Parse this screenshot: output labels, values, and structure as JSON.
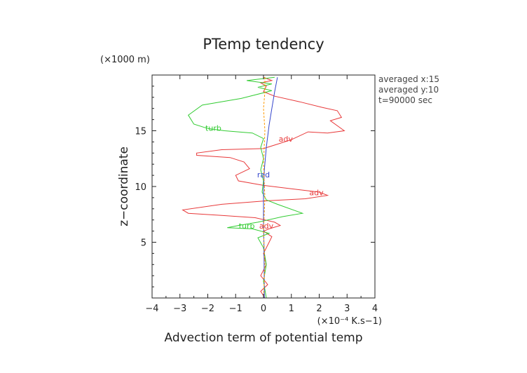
{
  "chart_data": {
    "type": "line",
    "title": "PTemp tendency",
    "xlabel": "Advection term of potential temp",
    "ylabel": "z−coordinate",
    "x_unit": "(×10⁻⁴ K.s−1)",
    "y_unit": "(×1000 m)",
    "xlim": [
      -4,
      4
    ],
    "ylim": [
      0,
      20
    ],
    "x_ticks": [
      -4,
      -3,
      -2,
      -1,
      0,
      1,
      2,
      3,
      4
    ],
    "x_tick_labels": [
      "−4",
      "−3",
      "−2",
      "−1",
      "0",
      "1",
      "2",
      "3",
      "4"
    ],
    "y_ticks": [
      5,
      10,
      15
    ],
    "y_tick_labels": [
      "5",
      "10",
      "15"
    ],
    "grid": false,
    "annotations": [
      "averaged  x:15",
      "averaged  y:10",
      "t=90000 sec"
    ],
    "series": [
      {
        "name": "adv",
        "color": "#e8393a",
        "labels": [
          {
            "text": "adv",
            "x": 0.8,
            "y": 14.2
          },
          {
            "text": "adv",
            "x": 1.9,
            "y": 9.4
          },
          {
            "text": "adv",
            "x": 0.1,
            "y": 6.4
          }
        ],
        "points": [
          [
            0.0,
            19.8
          ],
          [
            0.3,
            19.5
          ],
          [
            -0.1,
            19.3
          ],
          [
            0.1,
            19.0
          ],
          [
            0.0,
            18.5
          ],
          [
            0.4,
            18.1
          ],
          [
            1.3,
            17.6
          ],
          [
            2.1,
            17.1
          ],
          [
            2.65,
            16.8
          ],
          [
            2.8,
            16.2
          ],
          [
            2.4,
            15.9
          ],
          [
            2.9,
            15.0
          ],
          [
            2.3,
            14.8
          ],
          [
            1.6,
            14.9
          ],
          [
            1.0,
            14.2
          ],
          [
            0.5,
            13.8
          ],
          [
            0.0,
            13.4
          ],
          [
            -1.5,
            13.3
          ],
          [
            -2.4,
            13.0
          ],
          [
            -2.4,
            12.8
          ],
          [
            -1.2,
            12.6
          ],
          [
            -0.7,
            12.2
          ],
          [
            -0.5,
            11.6
          ],
          [
            -1.0,
            11.0
          ],
          [
            -0.9,
            10.5
          ],
          [
            0.0,
            10.1
          ],
          [
            1.0,
            9.8
          ],
          [
            2.0,
            9.5
          ],
          [
            2.3,
            9.2
          ],
          [
            1.5,
            8.9
          ],
          [
            0.0,
            8.7
          ],
          [
            -1.5,
            8.4
          ],
          [
            -2.9,
            7.9
          ],
          [
            -2.7,
            7.6
          ],
          [
            -1.5,
            7.4
          ],
          [
            -0.3,
            7.2
          ],
          [
            0.4,
            6.8
          ],
          [
            0.6,
            6.5
          ],
          [
            0.2,
            6.2
          ],
          [
            0.0,
            6.0
          ],
          [
            0.3,
            5.5
          ],
          [
            0.2,
            5.0
          ],
          [
            0.0,
            4.0
          ],
          [
            0.1,
            3.0
          ],
          [
            -0.1,
            2.0
          ],
          [
            0.15,
            1.2
          ],
          [
            -0.1,
            0.6
          ],
          [
            0.05,
            0.0
          ]
        ]
      },
      {
        "name": "turb",
        "color": "#33cc33",
        "labels": [
          {
            "text": "turb",
            "x": -1.8,
            "y": 15.2
          },
          {
            "text": "turb",
            "x": -0.6,
            "y": 6.4
          }
        ],
        "points": [
          [
            0.4,
            19.8
          ],
          [
            -0.6,
            19.5
          ],
          [
            0.3,
            19.2
          ],
          [
            -0.2,
            18.9
          ],
          [
            0.3,
            18.6
          ],
          [
            -0.8,
            17.9
          ],
          [
            -2.2,
            17.3
          ],
          [
            -2.7,
            16.4
          ],
          [
            -2.5,
            15.6
          ],
          [
            -2.0,
            15.2
          ],
          [
            -1.4,
            15.0
          ],
          [
            -0.4,
            14.8
          ],
          [
            0.0,
            14.3
          ],
          [
            -0.1,
            13.5
          ],
          [
            0.0,
            12.5
          ],
          [
            -0.1,
            11.5
          ],
          [
            0.0,
            10.5
          ],
          [
            -0.05,
            9.5
          ],
          [
            0.1,
            8.8
          ],
          [
            0.5,
            8.4
          ],
          [
            1.4,
            7.6
          ],
          [
            0.7,
            7.3
          ],
          [
            -0.2,
            6.8
          ],
          [
            -0.9,
            6.5
          ],
          [
            -1.3,
            6.3
          ],
          [
            -0.4,
            6.2
          ],
          [
            0.2,
            5.8
          ],
          [
            -0.2,
            5.4
          ],
          [
            0.0,
            4.5
          ],
          [
            0.1,
            3.0
          ],
          [
            0.0,
            1.5
          ],
          [
            0.1,
            0.0
          ]
        ]
      },
      {
        "name": "rad",
        "color": "#3344cc",
        "labels": [
          {
            "text": "rad",
            "x": 0.0,
            "y": 11.0
          }
        ],
        "points": [
          [
            0.5,
            19.8
          ],
          [
            0.4,
            18.5
          ],
          [
            0.3,
            17.0
          ],
          [
            0.2,
            15.5
          ],
          [
            0.1,
            13.5
          ],
          [
            0.03,
            11.5
          ],
          [
            0.0,
            9.5
          ],
          [
            0.0,
            7.0
          ],
          [
            0.02,
            4.0
          ],
          [
            0.03,
            0.0
          ]
        ]
      },
      {
        "name": "",
        "color": "#ff9900",
        "labels": [],
        "points": [
          [
            0.05,
            19.8
          ],
          [
            0.05,
            18.5
          ],
          [
            0.0,
            17.0
          ],
          [
            0.05,
            15.0
          ],
          [
            0.0,
            12.0
          ],
          [
            0.05,
            9.0
          ],
          [
            0.0,
            6.0
          ],
          [
            0.05,
            3.0
          ],
          [
            0.0,
            0.0
          ]
        ]
      }
    ]
  }
}
